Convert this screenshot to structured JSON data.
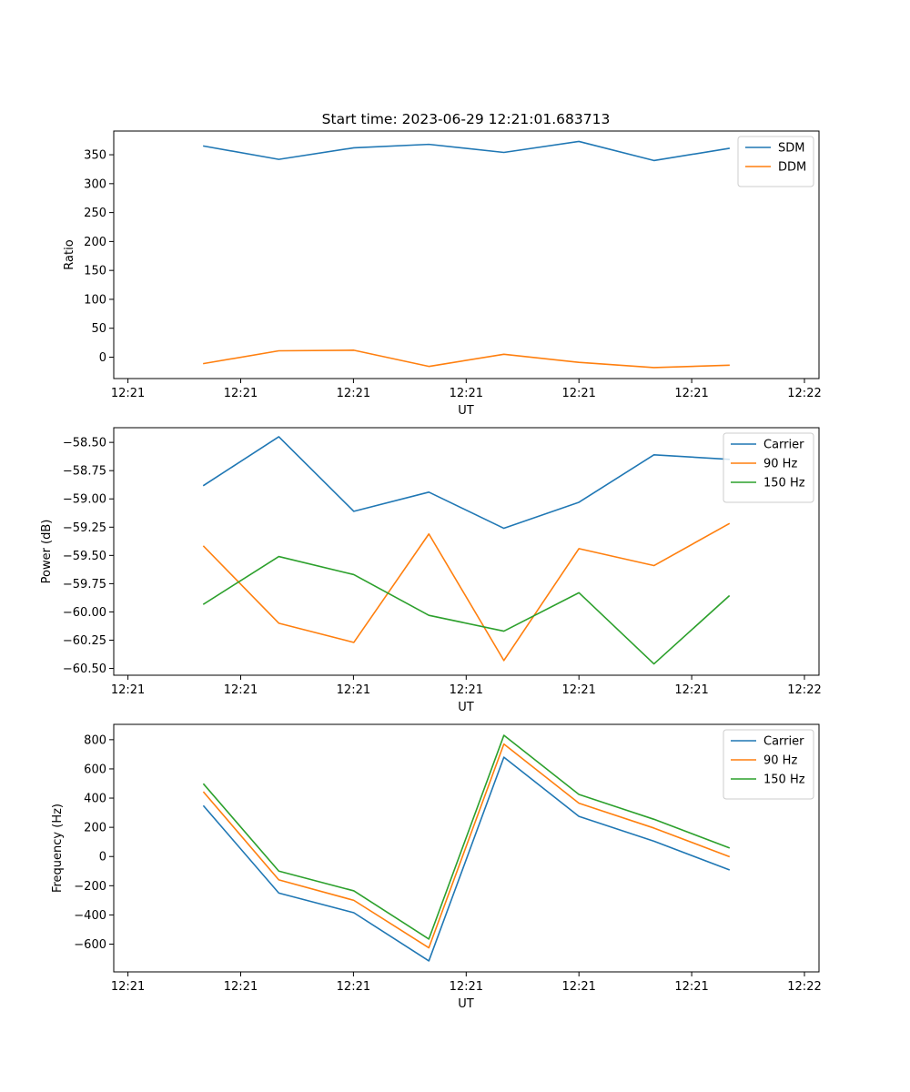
{
  "figure": {
    "title": "Start time: 2023-06-29 12:21:01.683713"
  },
  "chart_data": [
    {
      "type": "line",
      "xlabel": "UT",
      "ylabel": "Ratio",
      "x_tick_labels": [
        "12:21",
        "12:21",
        "12:21",
        "12:21",
        "12:21",
        "12:21",
        "12:22"
      ],
      "x": [
        1,
        2,
        3,
        4,
        5,
        6,
        7,
        8
      ],
      "xlim": [
        -0.2,
        9.2
      ],
      "ylim": [
        -37,
        391
      ],
      "y_ticks": [
        0,
        50,
        100,
        150,
        200,
        250,
        300,
        350
      ],
      "y_tick_labels": [
        "0",
        "50",
        "100",
        "150",
        "200",
        "250",
        "300",
        "350"
      ],
      "grid": false,
      "legend_position": "top-right",
      "series": [
        {
          "name": "SDM",
          "color": "#1f77b4",
          "values": [
            365,
            342,
            362,
            368,
            354,
            373,
            340,
            361
          ]
        },
        {
          "name": "DDM",
          "color": "#ff7f0e",
          "values": [
            -11,
            11,
            12,
            -16,
            5,
            -9,
            -18,
            -14
          ]
        }
      ]
    },
    {
      "type": "line",
      "xlabel": "UT",
      "ylabel": "Power (dB)",
      "x_tick_labels": [
        "12:21",
        "12:21",
        "12:21",
        "12:21",
        "12:21",
        "12:21",
        "12:22"
      ],
      "x": [
        1,
        2,
        3,
        4,
        5,
        6,
        7,
        8
      ],
      "xlim": [
        -0.2,
        9.2
      ],
      "ylim": [
        -60.56,
        -58.37
      ],
      "y_ticks": [
        -60.5,
        -60.25,
        -60.0,
        -59.75,
        -59.5,
        -59.25,
        -59.0,
        -58.75,
        -58.5
      ],
      "y_tick_labels": [
        "−60.50",
        "−60.25",
        "−60.00",
        "−59.75",
        "−59.50",
        "−59.25",
        "−59.00",
        "−58.75",
        "−58.50"
      ],
      "grid": false,
      "legend_position": "top-right",
      "series": [
        {
          "name": "Carrier",
          "color": "#1f77b4",
          "values": [
            -58.88,
            -58.45,
            -59.11,
            -58.94,
            -59.26,
            -59.03,
            -58.61,
            -58.65
          ]
        },
        {
          "name": "90 Hz",
          "color": "#ff7f0e",
          "values": [
            -59.42,
            -60.1,
            -60.27,
            -59.31,
            -60.43,
            -59.44,
            -59.59,
            -59.22
          ]
        },
        {
          "name": "150 Hz",
          "color": "#2ca02c",
          "values": [
            -59.93,
            -59.51,
            -59.67,
            -60.03,
            -60.17,
            -59.83,
            -60.46,
            -59.86
          ]
        }
      ]
    },
    {
      "type": "line",
      "xlabel": "UT",
      "ylabel": "Frequency (Hz)",
      "x_tick_labels": [
        "12:21",
        "12:21",
        "12:21",
        "12:21",
        "12:21",
        "12:21",
        "12:22"
      ],
      "x": [
        1,
        2,
        3,
        4,
        5,
        6,
        7,
        8
      ],
      "xlim": [
        -0.2,
        9.2
      ],
      "ylim": [
        -790,
        905
      ],
      "y_ticks": [
        -600,
        -400,
        -200,
        0,
        200,
        400,
        600,
        800
      ],
      "y_tick_labels": [
        "−600",
        "−400",
        "−200",
        "0",
        "200",
        "400",
        "600",
        "800"
      ],
      "grid": false,
      "legend_position": "top-right",
      "series": [
        {
          "name": "Carrier",
          "color": "#1f77b4",
          "values": [
            345,
            -250,
            -385,
            -715,
            680,
            275,
            105,
            -90
          ]
        },
        {
          "name": "90 Hz",
          "color": "#ff7f0e",
          "values": [
            440,
            -160,
            -300,
            -625,
            770,
            365,
            195,
            0
          ]
        },
        {
          "name": "150 Hz",
          "color": "#2ca02c",
          "values": [
            495,
            -100,
            -235,
            -565,
            830,
            425,
            255,
            60
          ]
        }
      ]
    }
  ]
}
